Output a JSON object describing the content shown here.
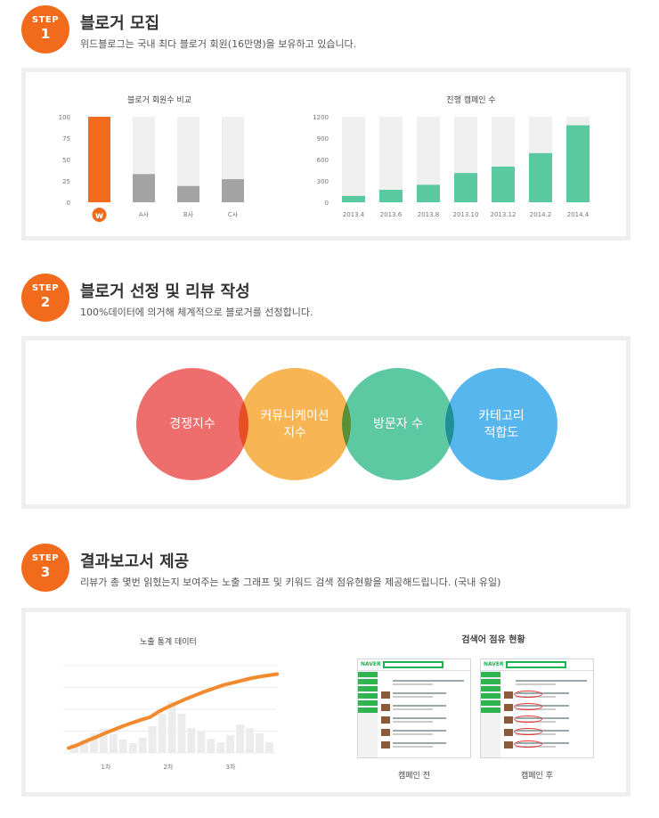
{
  "steps": [
    {
      "badge_top": "STEP",
      "badge_num": "1",
      "title": "블로거 모집",
      "desc": "위드블로그는 국내 최다 블로거 회원(16만명)을 보유하고 있습니다."
    },
    {
      "badge_top": "STEP",
      "badge_num": "2",
      "title": "블로거 선정 및 리뷰 작성",
      "desc": "100%데이터에 의거해 체계적으로 블로거를 선정합니다."
    },
    {
      "badge_top": "STEP",
      "badge_num": "3",
      "title": "결과보고서 제공",
      "desc": "리뷰가 총 몇번 읽혔는지 보여주는 노출 그래프 및 키워드 검색 점유현황을 제공해드립니다. (국내 유일)"
    }
  ],
  "colors": {
    "accent": "#f26b1d",
    "green": "#5ac9a0",
    "gray_bar": "#a3a3a3",
    "track": "#f0f0f0"
  },
  "chart_data": [
    {
      "type": "bar",
      "title": "블로거 회원수 비교",
      "categories": [
        "w-logo",
        "A사",
        "B사",
        "C사"
      ],
      "values": [
        100,
        33,
        19,
        27
      ],
      "yticks": [
        "100",
        "75",
        "50",
        "25",
        "0"
      ],
      "ylim": [
        0,
        100
      ]
    },
    {
      "type": "bar",
      "title": "진행 캠페인 수",
      "categories": [
        "2013.4",
        "2013.6",
        "2013.8",
        "2013.10",
        "2013.12",
        "2014.2",
        "2014.4"
      ],
      "values": [
        90,
        175,
        245,
        410,
        500,
        690,
        1080
      ],
      "yticks": [
        "1200",
        "900",
        "600",
        "300",
        "0"
      ],
      "ylim": [
        0,
        1200
      ]
    },
    {
      "type": "line",
      "title": "노출 통계 데이터",
      "xticks": [
        "1차",
        "2차",
        "3차"
      ],
      "series": [
        {
          "values": [
            3,
            10,
            19,
            27,
            36,
            44,
            52,
            59,
            66,
            72,
            85,
            95,
            104,
            113,
            121,
            129,
            136,
            143,
            148,
            153,
            158,
            162,
            165,
            168
          ]
        }
      ],
      "bars": [
        10,
        14,
        22,
        27,
        21,
        15,
        11,
        17,
        30,
        44,
        58,
        44,
        28,
        24,
        16,
        12,
        20,
        32,
        28,
        22,
        12
      ]
    }
  ],
  "circles": [
    {
      "label": "경쟁지수",
      "color": "#ee6d6d"
    },
    {
      "label": "커뮤니케이션\n지수",
      "color": "#f7b553"
    },
    {
      "label": "방문자 수",
      "color": "#5cc9a2"
    },
    {
      "label": "카테고리\n적합도",
      "color": "#58b6ee"
    }
  ],
  "search_share": {
    "title": "검색어 점유 현황",
    "before_label": "캠페인 전",
    "after_label": "캠페인 후",
    "logo": "NAVER"
  }
}
